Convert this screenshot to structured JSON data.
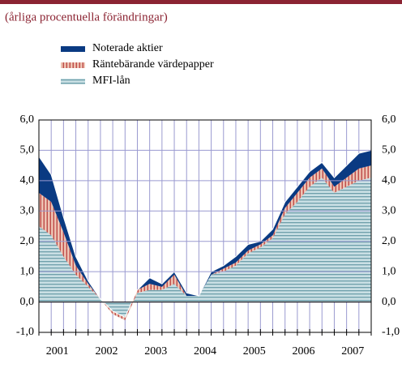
{
  "chart_data": {
    "type": "stacked_area",
    "subtitle": "(årliga procentuella förändringar)",
    "categories": [
      "2001",
      null,
      null,
      null,
      "2002",
      null,
      null,
      null,
      "2003",
      null,
      null,
      null,
      "2004",
      null,
      null,
      null,
      "2005",
      null,
      null,
      null,
      "2006",
      null,
      null,
      null,
      "2007",
      null,
      null,
      null
    ],
    "series": [
      {
        "name": "MFI-lån",
        "color": "#a9cbd3",
        "values": [
          2.5,
          2.2,
          1.5,
          0.9,
          0.5,
          0.1,
          -0.4,
          -0.6,
          0.3,
          0.4,
          0.4,
          0.6,
          0.2,
          0.2,
          0.9,
          1.0,
          1.2,
          1.6,
          1.8,
          2.1,
          2.9,
          3.3,
          3.8,
          4.1,
          3.6,
          3.8,
          4.0,
          4.1
        ]
      },
      {
        "name": "Räntebärande värdepapper",
        "color": "#c0504d",
        "values": [
          1.1,
          1.1,
          0.8,
          0.3,
          0.1,
          0,
          0.1,
          0.1,
          0.1,
          0.2,
          0.1,
          0.3,
          0,
          0,
          0,
          0.1,
          0.1,
          0.1,
          0.1,
          0.1,
          0.2,
          0.3,
          0.3,
          0.3,
          0.2,
          0.3,
          0.4,
          0.4
        ]
      },
      {
        "name": "Noterade aktier",
        "color": "#0a3a82",
        "values": [
          1.2,
          0.9,
          0.5,
          0.3,
          0.1,
          0,
          0,
          0,
          0,
          0.2,
          0.1,
          0.1,
          0.1,
          0,
          0.1,
          0.1,
          0.2,
          0.2,
          0.1,
          0.2,
          0.2,
          0.2,
          0.2,
          0.2,
          0.3,
          0.4,
          0.5,
          0.5
        ]
      }
    ],
    "ylim": [
      -1,
      6
    ],
    "yticks": [
      {
        "value": -1,
        "label": "-1,0"
      },
      {
        "value": 0,
        "label": "0,0"
      },
      {
        "value": 1,
        "label": "1,0"
      },
      {
        "value": 2,
        "label": "2,0"
      },
      {
        "value": 3,
        "label": "3,0"
      },
      {
        "value": 4,
        "label": "4,0"
      },
      {
        "value": 5,
        "label": "5,0"
      },
      {
        "value": 6,
        "label": "6,0"
      }
    ],
    "grid": true
  }
}
